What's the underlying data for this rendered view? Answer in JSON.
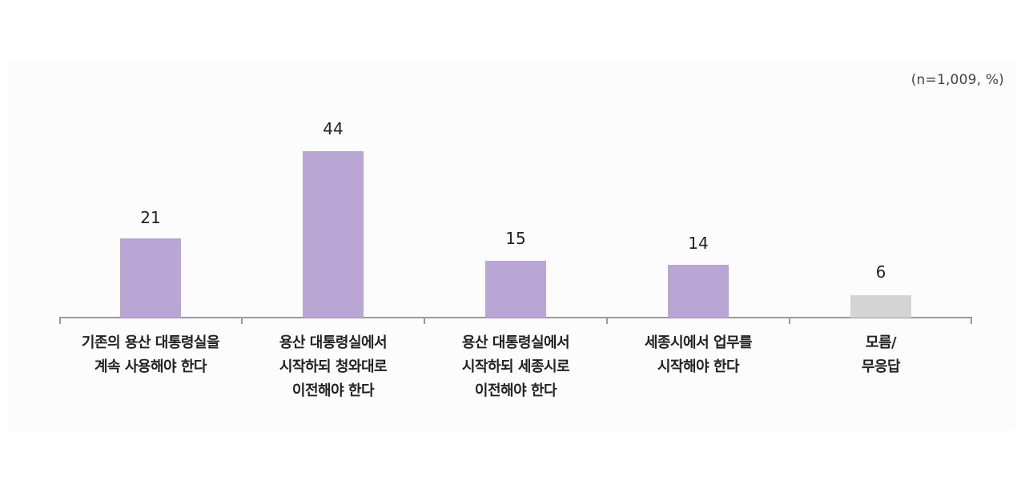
{
  "note": "(n=1,009, %)",
  "colors": {
    "primary_bar": "#b9a6d4",
    "other_bar": "#d4d4d4",
    "axis": "#9a9a9a",
    "panel": "#fcfcfc"
  },
  "chart_data": {
    "type": "bar",
    "title": "",
    "subtitle": "(n=1,009, %)",
    "xlabel": "",
    "ylabel": "%",
    "ylim": [
      0,
      50
    ],
    "grid": false,
    "legend": null,
    "categories": [
      "기존의 용산 대통령실을 계속 사용해야 한다",
      "용산 대통령실에서 시작하되 청와대로 이전해야 한다",
      "용산 대통령실에서 시작하되 세종시로 이전해야 한다",
      "세종시에서 업무를 시작해야 한다",
      "모름/무응답"
    ],
    "values": [
      21,
      44,
      15,
      14,
      6
    ],
    "bar_colors": [
      "#b9a6d4",
      "#b9a6d4",
      "#b9a6d4",
      "#b9a6d4",
      "#d4d4d4"
    ]
  },
  "bars": [
    {
      "value": "21",
      "label_lines": [
        "기존의 용산 대통령실을",
        "계속 사용해야 한다"
      ]
    },
    {
      "value": "44",
      "label_lines": [
        "용산 대통령실에서",
        "시작하되 청와대로",
        "이전해야 한다"
      ]
    },
    {
      "value": "15",
      "label_lines": [
        "용산 대통령실에서",
        "시작하되 세종시로",
        "이전해야 한다"
      ]
    },
    {
      "value": "14",
      "label_lines": [
        "세종시에서 업무를",
        "시작해야 한다"
      ]
    },
    {
      "value": "6",
      "label_lines": [
        "모름/",
        "무응답"
      ]
    }
  ]
}
